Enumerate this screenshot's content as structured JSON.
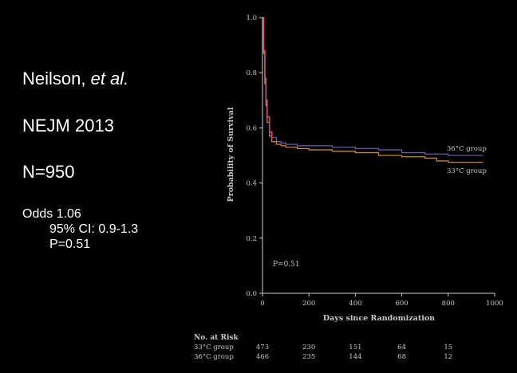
{
  "slide": {
    "author_name": "Neilson, ",
    "author_etal": "et al.",
    "journal": "NEJM 2013",
    "sample_size": "N=950",
    "odds": "Odds 1.06",
    "ci": "95% CI: 0.9-1.3",
    "p_value": "P=0.51"
  },
  "chart_data": {
    "type": "line",
    "xlabel": "Days since Randomization",
    "ylabel": "Probability of Survival",
    "xlim": [
      0,
      1000
    ],
    "ylim": [
      0,
      1.0
    ],
    "x_ticks": [
      "0",
      "200",
      "400",
      "600",
      "800",
      "1000"
    ],
    "y_ticks": [
      "0.0",
      "0.2",
      "0.4",
      "0.6",
      "0.8",
      "1.0"
    ],
    "annotation": "P=0.51",
    "colors": {
      "group_36": "#6b5a9e",
      "group_33": "#c8862a",
      "early_drop": "#d04a86",
      "axis": "#cfcfcf"
    },
    "series": [
      {
        "name": "36°C group",
        "x": [
          0,
          5,
          10,
          15,
          20,
          30,
          40,
          60,
          80,
          100,
          150,
          200,
          300,
          400,
          500,
          600,
          700,
          750,
          800,
          900,
          950
        ],
        "y": [
          1.0,
          0.88,
          0.78,
          0.7,
          0.64,
          0.585,
          0.565,
          0.55,
          0.545,
          0.54,
          0.535,
          0.535,
          0.53,
          0.525,
          0.52,
          0.51,
          0.505,
          0.505,
          0.5,
          0.5,
          0.5
        ]
      },
      {
        "name": "33°C group",
        "x": [
          0,
          5,
          10,
          15,
          20,
          30,
          40,
          60,
          80,
          100,
          150,
          200,
          300,
          400,
          500,
          600,
          700,
          750,
          800,
          900,
          950
        ],
        "y": [
          1.0,
          0.87,
          0.76,
          0.68,
          0.62,
          0.57,
          0.55,
          0.54,
          0.535,
          0.53,
          0.525,
          0.52,
          0.515,
          0.51,
          0.5,
          0.495,
          0.49,
          0.48,
          0.475,
          0.475,
          0.475
        ]
      }
    ],
    "risk_table": {
      "title": "No. at Risk",
      "rows": [
        {
          "label": "33°C group",
          "values": [
            "473",
            "230",
            "151",
            "64",
            "15"
          ]
        },
        {
          "label": "36°C group",
          "values": [
            "466",
            "235",
            "144",
            "68",
            "12"
          ]
        }
      ]
    }
  }
}
